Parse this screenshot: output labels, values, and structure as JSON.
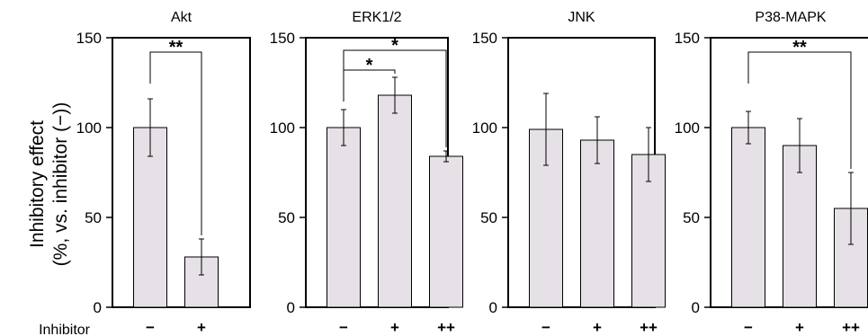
{
  "figure": {
    "ylabel_line1": "Inhibitory effect",
    "ylabel_line2": "(%, vs. inhibitor (−))",
    "xaxis_row_label": "Inhibitor"
  },
  "colors": {
    "bar_fill": "#e6e1e6",
    "bar_stroke": "#000000",
    "axis": "#000000"
  },
  "chart_data": [
    {
      "type": "bar",
      "title": "Akt",
      "categories": [
        "−",
        "+"
      ],
      "values": [
        100,
        28
      ],
      "errors": [
        16,
        10
      ],
      "ylim": [
        0,
        150
      ],
      "yticks": [
        0,
        50,
        100,
        150
      ],
      "significance": [
        {
          "from": 0,
          "to": 1,
          "label": "**"
        }
      ]
    },
    {
      "type": "bar",
      "title": "ERK1/2",
      "categories": [
        "−",
        "+",
        "++"
      ],
      "values": [
        100,
        118,
        84
      ],
      "errors": [
        10,
        10,
        3
      ],
      "ylim": [
        0,
        150
      ],
      "yticks": [
        0,
        50,
        100,
        150
      ],
      "significance": [
        {
          "from": 0,
          "to": 1,
          "label": "*"
        },
        {
          "from": 0,
          "to": 2,
          "label": "*"
        }
      ]
    },
    {
      "type": "bar",
      "title": "JNK",
      "categories": [
        "−",
        "+",
        "++"
      ],
      "values": [
        99,
        93,
        85
      ],
      "errors": [
        20,
        13,
        15
      ],
      "ylim": [
        0,
        150
      ],
      "yticks": [
        0,
        50,
        100,
        150
      ],
      "significance": []
    },
    {
      "type": "bar",
      "title": "P38-MAPK",
      "categories": [
        "−",
        "+",
        "++"
      ],
      "values": [
        100,
        90,
        55
      ],
      "errors": [
        9,
        15,
        20
      ],
      "ylim": [
        0,
        150
      ],
      "yticks": [
        0,
        50,
        100,
        150
      ],
      "significance": [
        {
          "from": 0,
          "to": 2,
          "label": "**"
        }
      ]
    }
  ]
}
